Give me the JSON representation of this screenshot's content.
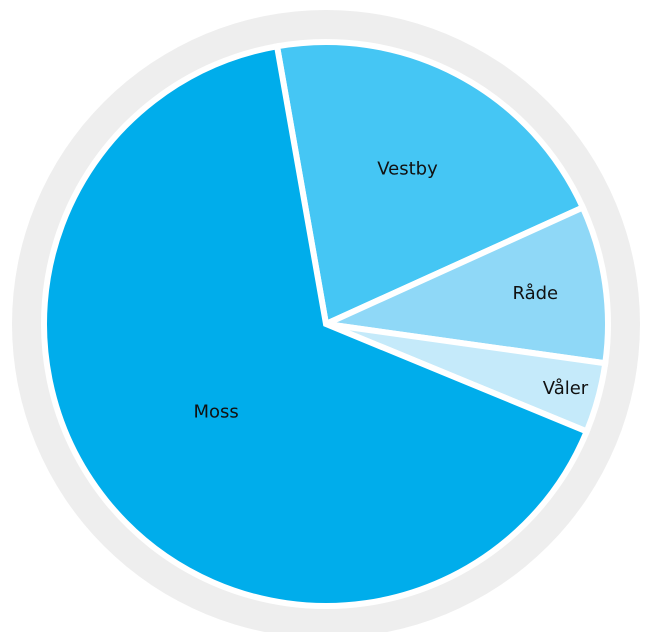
{
  "chart_data": {
    "type": "pie",
    "title": "",
    "start_angle_deg": -100,
    "direction": "clockwise",
    "slices": [
      {
        "label": "Vestby",
        "value": 21,
        "color": "#45c6f4"
      },
      {
        "label": "Råde",
        "value": 9,
        "color": "#8fd8f7"
      },
      {
        "label": "Våler",
        "value": 4,
        "color": "#c5eafa"
      },
      {
        "label": "Moss",
        "value": 66,
        "color": "#00adeb"
      }
    ]
  },
  "colors": {
    "ring": "#eeeeee",
    "separator": "#ffffff"
  }
}
